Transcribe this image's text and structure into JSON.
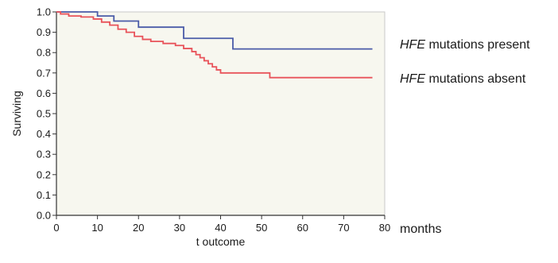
{
  "chart_data": {
    "type": "line",
    "subtype": "kaplan-meier step",
    "xlabel": "t outcome",
    "ylabel": "Surviving",
    "xlim": [
      0,
      80
    ],
    "ylim": [
      0,
      1.0
    ],
    "xticks": [
      0,
      10,
      20,
      30,
      40,
      50,
      60,
      70,
      80
    ],
    "yticks": [
      0.0,
      0.1,
      0.2,
      0.3,
      0.4,
      0.5,
      0.6,
      0.7,
      0.8,
      0.9,
      1.0
    ],
    "grid": false,
    "plot_background": "#f7f7ef",
    "legend_position": "right",
    "units_label": "months",
    "series": [
      {
        "name_italic": "HFE",
        "name_rest": " mutations present",
        "color": "#4a5ba8",
        "x": [
          0,
          10,
          10,
          14,
          14,
          20,
          20,
          31,
          31,
          43,
          43,
          77
        ],
        "y": [
          1.0,
          1.0,
          0.98,
          0.98,
          0.955,
          0.955,
          0.925,
          0.925,
          0.87,
          0.87,
          0.818,
          0.818
        ]
      },
      {
        "name_italic": "HFE",
        "name_rest": " mutations absent",
        "color": "#e8535a",
        "x": [
          0,
          1,
          1,
          3,
          3,
          6,
          6,
          9,
          9,
          11,
          11,
          13,
          13,
          15,
          15,
          17,
          17,
          19,
          19,
          21,
          21,
          23,
          23,
          26,
          26,
          29,
          29,
          31,
          31,
          33,
          33,
          34,
          34,
          35,
          35,
          36,
          36,
          37,
          37,
          38,
          38,
          39,
          39,
          40,
          40,
          52,
          52,
          77
        ],
        "y": [
          1.0,
          1.0,
          0.99,
          0.99,
          0.98,
          0.98,
          0.975,
          0.975,
          0.965,
          0.965,
          0.95,
          0.95,
          0.935,
          0.935,
          0.915,
          0.915,
          0.9,
          0.9,
          0.88,
          0.88,
          0.865,
          0.865,
          0.855,
          0.855,
          0.845,
          0.845,
          0.835,
          0.835,
          0.82,
          0.82,
          0.805,
          0.805,
          0.79,
          0.79,
          0.775,
          0.775,
          0.76,
          0.76,
          0.745,
          0.745,
          0.73,
          0.73,
          0.715,
          0.715,
          0.7,
          0.7,
          0.677,
          0.677
        ]
      }
    ]
  }
}
